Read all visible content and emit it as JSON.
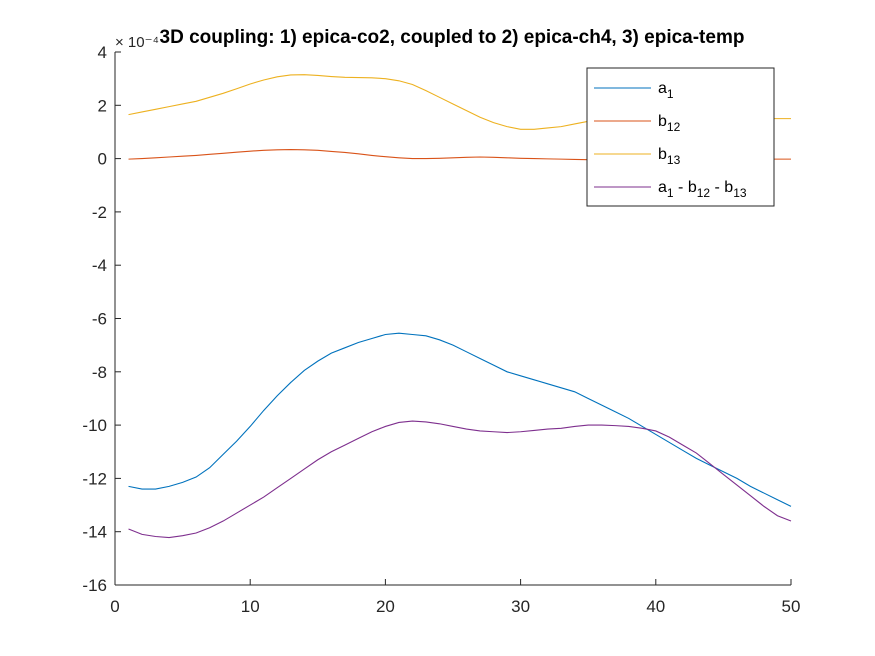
{
  "chart_data": {
    "type": "line",
    "title": "3D coupling: 1) epica-co2, coupled to 2) epica-ch4, 3) epica-temp",
    "xlabel": "",
    "ylabel": "",
    "xlim": [
      0,
      50
    ],
    "ylim": [
      -16,
      4
    ],
    "y_exponent_label": "× 10⁻⁴",
    "xticks": [
      0,
      10,
      20,
      30,
      40,
      50
    ],
    "yticks": [
      4,
      2,
      0,
      -2,
      -4,
      -6,
      -8,
      -10,
      -12,
      -14,
      -16
    ],
    "grid": false,
    "legend_position": "top-right",
    "x": [
      1,
      2,
      3,
      4,
      5,
      6,
      7,
      8,
      9,
      10,
      11,
      12,
      13,
      14,
      15,
      16,
      17,
      18,
      19,
      20,
      21,
      22,
      23,
      24,
      25,
      26,
      27,
      28,
      29,
      30,
      31,
      32,
      33,
      34,
      35,
      36,
      37,
      38,
      39,
      40,
      41,
      42,
      43,
      44,
      45,
      46,
      47,
      48,
      49,
      50
    ],
    "series": [
      {
        "name": "a₁",
        "legend": {
          "base": "a",
          "sub": "1"
        },
        "color": "#0072BD",
        "values": [
          -12.3,
          -12.4,
          -12.4,
          -12.3,
          -12.15,
          -11.95,
          -11.6,
          -11.1,
          -10.6,
          -10.05,
          -9.45,
          -8.9,
          -8.4,
          -7.95,
          -7.6,
          -7.3,
          -7.1,
          -6.9,
          -6.75,
          -6.6,
          -6.55,
          -6.6,
          -6.65,
          -6.8,
          -7.0,
          -7.25,
          -7.5,
          -7.75,
          -8.0,
          -8.15,
          -8.3,
          -8.45,
          -8.6,
          -8.75,
          -9.0,
          -9.25,
          -9.5,
          -9.75,
          -10.05,
          -10.35,
          -10.65,
          -10.95,
          -11.25,
          -11.5,
          -11.75,
          -12.0,
          -12.3,
          -12.55,
          -12.8,
          -13.05
        ]
      },
      {
        "name": "b₁₂",
        "legend": {
          "base": "b",
          "sub": "12"
        },
        "color": "#D95319",
        "values": [
          -0.02,
          0.0,
          0.03,
          0.06,
          0.09,
          0.12,
          0.16,
          0.2,
          0.24,
          0.28,
          0.31,
          0.33,
          0.34,
          0.33,
          0.31,
          0.27,
          0.23,
          0.18,
          0.12,
          0.07,
          0.03,
          0.0,
          0.0,
          0.01,
          0.03,
          0.05,
          0.06,
          0.05,
          0.03,
          0.01,
          0.0,
          -0.01,
          -0.02,
          -0.03,
          -0.04,
          -0.04,
          -0.04,
          -0.03,
          -0.02,
          -0.02,
          -0.02,
          -0.02,
          -0.02,
          -0.02,
          -0.02,
          -0.02,
          -0.02,
          -0.02,
          -0.02,
          -0.02
        ]
      },
      {
        "name": "b₁₃",
        "legend": {
          "base": "b",
          "sub": "13"
        },
        "color": "#EDB120",
        "values": [
          1.65,
          1.75,
          1.85,
          1.95,
          2.05,
          2.15,
          2.3,
          2.45,
          2.62,
          2.8,
          2.95,
          3.07,
          3.14,
          3.15,
          3.12,
          3.08,
          3.05,
          3.04,
          3.03,
          3.0,
          2.92,
          2.78,
          2.55,
          2.3,
          2.05,
          1.8,
          1.55,
          1.35,
          1.2,
          1.1,
          1.1,
          1.15,
          1.2,
          1.3,
          1.4,
          1.55,
          1.5,
          1.48,
          1.5,
          1.52,
          1.5,
          1.48,
          1.45,
          1.45,
          1.47,
          1.48,
          1.5,
          1.5,
          1.5,
          1.5
        ]
      },
      {
        "name": "a₁ - b₁₂ - b₁₃",
        "legend": {
          "base": "a",
          "sub": "1",
          "rest": [
            " - b",
            "12",
            " - b",
            "13"
          ]
        },
        "color": "#7E2F8E",
        "values": [
          -13.9,
          -14.1,
          -14.18,
          -14.22,
          -14.15,
          -14.05,
          -13.85,
          -13.6,
          -13.3,
          -13.0,
          -12.7,
          -12.35,
          -12.0,
          -11.65,
          -11.3,
          -11.0,
          -10.75,
          -10.5,
          -10.25,
          -10.05,
          -9.9,
          -9.85,
          -9.88,
          -9.95,
          -10.05,
          -10.15,
          -10.22,
          -10.25,
          -10.28,
          -10.25,
          -10.2,
          -10.15,
          -10.12,
          -10.05,
          -10.0,
          -10.0,
          -10.02,
          -10.05,
          -10.12,
          -10.22,
          -10.45,
          -10.75,
          -11.05,
          -11.45,
          -11.85,
          -12.25,
          -12.65,
          -13.05,
          -13.4,
          -13.6
        ]
      }
    ]
  }
}
